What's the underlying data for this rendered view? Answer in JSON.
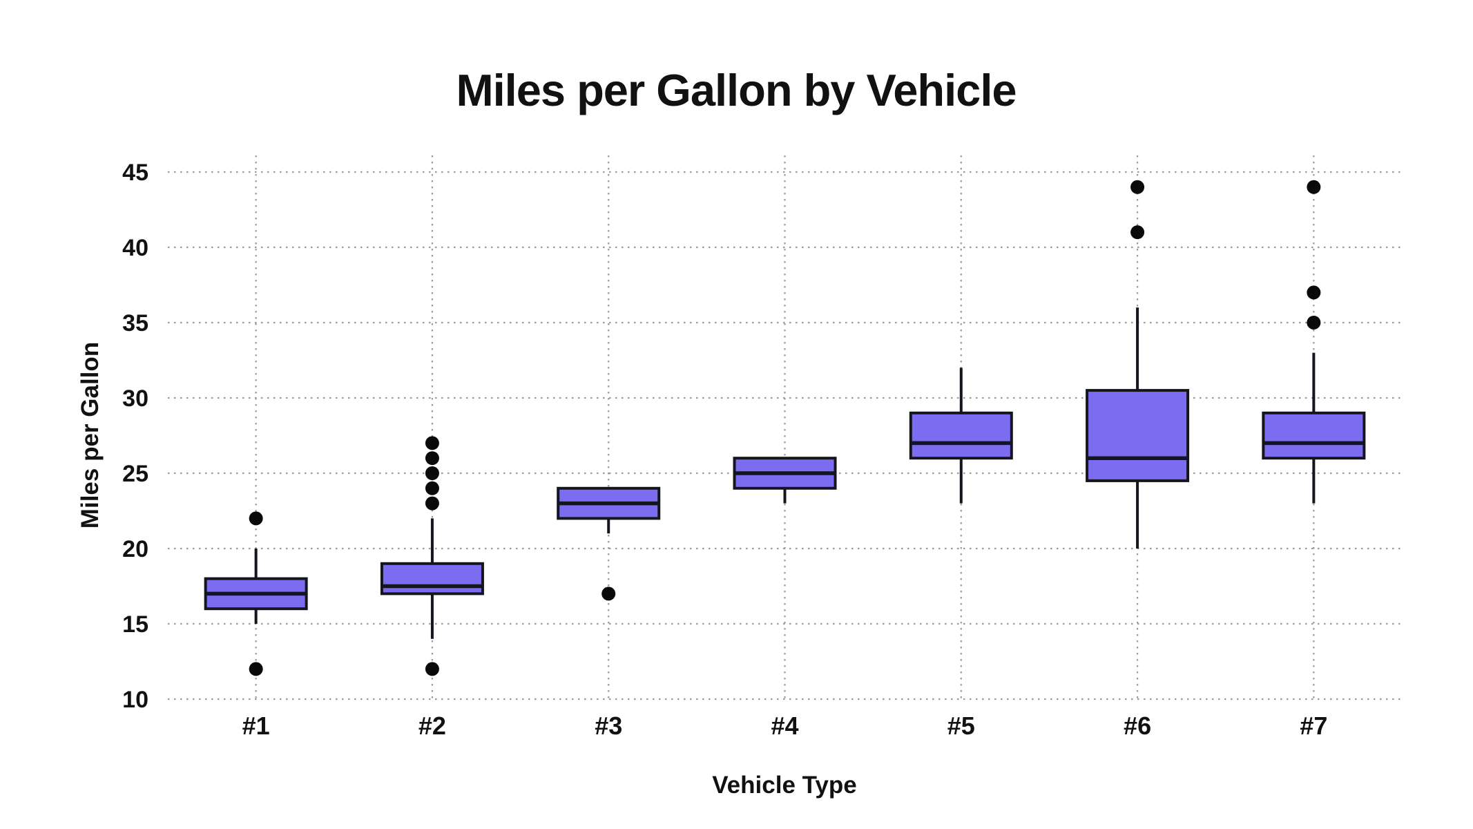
{
  "chart_data": {
    "type": "boxplot",
    "title": "Miles per Gallon by Vehicle",
    "xlabel": "Vehicle Type",
    "ylabel": "Miles per Gallon",
    "categories": [
      "#1",
      "#2",
      "#3",
      "#4",
      "#5",
      "#6",
      "#7"
    ],
    "y_ticks": [
      10,
      15,
      20,
      25,
      30,
      35,
      40,
      45
    ],
    "ylim": [
      10,
      46.1
    ],
    "grid": "dotted horizontal and vertical gridlines, no axis spines",
    "legend": "none",
    "series": [
      {
        "category": "#1",
        "low": 15,
        "q1": 16,
        "median": 17,
        "q3": 18,
        "high": 20,
        "outliers": [
          22,
          12
        ]
      },
      {
        "category": "#2",
        "low": 14,
        "q1": 17,
        "median": 17.5,
        "q3": 19,
        "high": 22,
        "outliers": [
          27,
          26,
          25,
          24,
          23,
          12
        ]
      },
      {
        "category": "#3",
        "low": 21,
        "q1": 22,
        "median": 23,
        "q3": 24,
        "high": 24,
        "outliers": [
          17
        ]
      },
      {
        "category": "#4",
        "low": 23,
        "q1": 24,
        "median": 25,
        "q3": 26,
        "high": 26,
        "outliers": []
      },
      {
        "category": "#5",
        "low": 23,
        "q1": 26,
        "median": 27,
        "q3": 29,
        "high": 32,
        "outliers": []
      },
      {
        "category": "#6",
        "low": 20,
        "q1": 24.5,
        "median": 26,
        "q3": 30.5,
        "high": 36,
        "outliers": [
          44,
          41
        ]
      },
      {
        "category": "#7",
        "low": 23,
        "q1": 26,
        "median": 27,
        "q3": 29,
        "high": 33,
        "outliers": [
          44,
          37,
          35
        ]
      }
    ],
    "colors": {
      "box_fill": "#7b6cf0",
      "box_stroke": "#15151f",
      "median": "#15151f",
      "whisker": "#15151f",
      "outlier": "#0a0a0a",
      "grid": "#9a9a9a",
      "text": "#111111",
      "background": "#ffffff"
    }
  }
}
